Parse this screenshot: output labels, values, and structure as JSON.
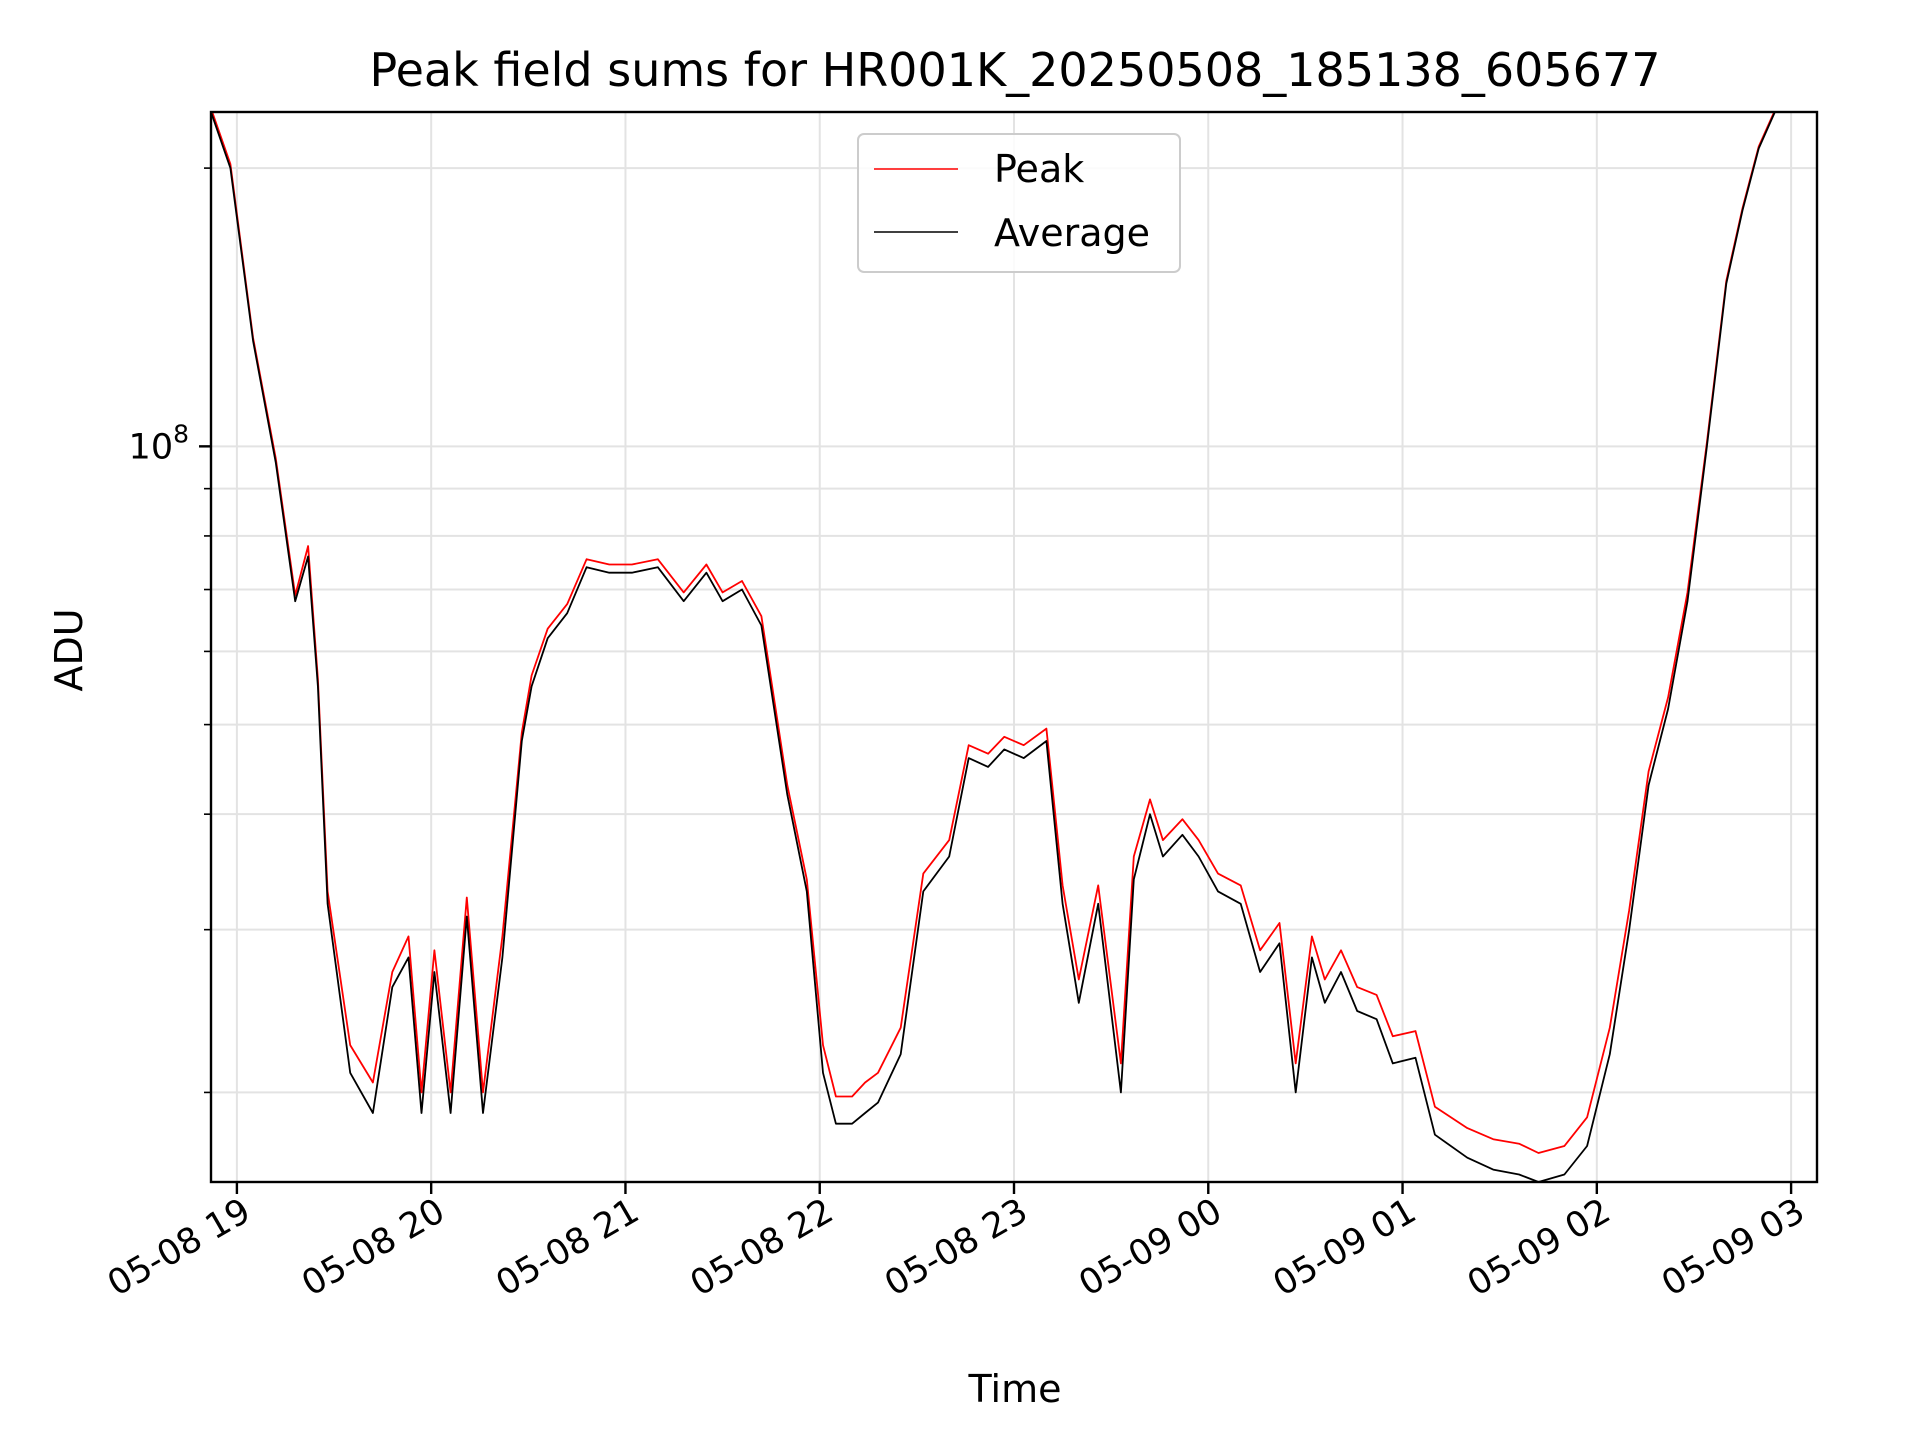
{
  "chart_data": {
    "type": "line",
    "title": "Peak field sums for HR001K_20250508_185138_605677",
    "xlabel": "Time",
    "ylabel": "ADU",
    "y_scale": "log",
    "ylim": [
      16000000,
      230000000
    ],
    "xlim": [
      "05-08 18:52",
      "05-09 03:08"
    ],
    "grid": true,
    "legend_position": "top-center",
    "x_ticks": [
      "05-08 19",
      "05-08 20",
      "05-08 21",
      "05-08 22",
      "05-08 23",
      "05-09 00",
      "05-09 01",
      "05-09 02",
      "05-09 03"
    ],
    "y_major_ticks": [
      {
        "value": 100000000,
        "label_base": "10",
        "label_exp": "8"
      }
    ],
    "series": [
      {
        "name": "Peak",
        "color": "#ff0000"
      },
      {
        "name": "Average",
        "color": "#000000"
      }
    ],
    "x": [
      "05-08 18:52",
      "05-08 18:58",
      "05-08 19:05",
      "05-08 19:12",
      "05-08 19:18",
      "05-08 19:22",
      "05-08 19:25",
      "05-08 19:28",
      "05-08 19:35",
      "05-08 19:42",
      "05-08 19:48",
      "05-08 19:53",
      "05-08 19:57",
      "05-08 20:01",
      "05-08 20:06",
      "05-08 20:11",
      "05-08 20:16",
      "05-08 20:22",
      "05-08 20:28",
      "05-08 20:31",
      "05-08 20:36",
      "05-08 20:42",
      "05-08 20:48",
      "05-08 20:55",
      "05-08 21:02",
      "05-08 21:10",
      "05-08 21:18",
      "05-08 21:25",
      "05-08 21:30",
      "05-08 21:36",
      "05-08 21:42",
      "05-08 21:50",
      "05-08 21:56",
      "05-08 22:01",
      "05-08 22:05",
      "05-08 22:10",
      "05-08 22:14",
      "05-08 22:18",
      "05-08 22:25",
      "05-08 22:32",
      "05-08 22:40",
      "05-08 22:46",
      "05-08 22:52",
      "05-08 22:57",
      "05-08 23:03",
      "05-08 23:10",
      "05-08 23:15",
      "05-08 23:20",
      "05-08 23:26",
      "05-08 23:33",
      "05-08 23:37",
      "05-08 23:42",
      "05-08 23:46",
      "05-08 23:52",
      "05-08 23:57",
      "05-09 00:03",
      "05-09 00:10",
      "05-09 00:16",
      "05-09 00:22",
      "05-09 00:27",
      "05-09 00:32",
      "05-09 00:36",
      "05-09 00:41",
      "05-09 00:46",
      "05-09 00:52",
      "05-09 00:57",
      "05-09 01:04",
      "05-09 01:10",
      "05-09 01:20",
      "05-09 01:28",
      "05-09 01:36",
      "05-09 01:42",
      "05-09 01:50",
      "05-09 01:57",
      "05-09 02:04",
      "05-09 02:10",
      "05-09 02:16",
      "05-09 02:22",
      "05-09 02:28",
      "05-09 02:34",
      "05-09 02:40",
      "05-09 02:45",
      "05-09 02:50",
      "05-09 02:55",
      "05-09 03:00"
    ],
    "average": [
      230000000,
      200000000,
      130000000,
      96000000,
      68000000,
      76000000,
      55000000,
      32000000,
      21000000,
      19000000,
      26000000,
      28000000,
      19000000,
      27000000,
      19000000,
      31000000,
      19000000,
      28000000,
      48000000,
      55000000,
      62000000,
      66000000,
      74000000,
      73000000,
      73000000,
      74000000,
      68000000,
      73000000,
      68000000,
      70000000,
      64000000,
      42000000,
      33000000,
      21000000,
      18500000,
      18500000,
      19000000,
      19500000,
      22000000,
      33000000,
      36000000,
      46000000,
      45000000,
      47000000,
      46000000,
      48000000,
      32000000,
      25000000,
      32000000,
      20000000,
      34000000,
      40000000,
      36000000,
      38000000,
      36000000,
      33000000,
      32000000,
      27000000,
      29000000,
      20000000,
      28000000,
      25000000,
      27000000,
      24500000,
      24000000,
      21500000,
      21800000,
      18000000,
      17000000,
      16500000,
      16300000,
      16000000,
      16300000,
      17500000,
      22000000,
      30000000,
      43000000,
      52000000,
      68000000,
      100000000,
      150000000,
      180000000,
      210000000,
      230000000,
      235000000
    ],
    "peak": [
      232000000,
      202000000,
      131000000,
      97000000,
      69000000,
      78000000,
      56000000,
      33000000,
      22500000,
      20500000,
      27000000,
      29500000,
      20000000,
      28500000,
      20000000,
      32500000,
      20000000,
      29500000,
      49000000,
      56500000,
      63500000,
      67500000,
      75500000,
      74500000,
      74500000,
      75500000,
      69500000,
      74500000,
      69500000,
      71500000,
      65500000,
      43000000,
      34000000,
      22500000,
      19800000,
      19800000,
      20500000,
      21000000,
      23500000,
      34500000,
      37500000,
      47500000,
      46500000,
      48500000,
      47500000,
      49500000,
      33500000,
      26500000,
      33500000,
      21500000,
      36000000,
      41500000,
      37500000,
      39500000,
      37500000,
      34500000,
      33500000,
      28500000,
      30500000,
      21500000,
      29500000,
      26500000,
      28500000,
      26000000,
      25500000,
      23000000,
      23300000,
      19300000,
      18300000,
      17800000,
      17600000,
      17200000,
      17500000,
      18800000,
      23500000,
      31500000,
      44500000,
      53500000,
      69500000,
      101000000,
      151000000,
      181000000,
      211000000,
      231000000,
      236000000
    ]
  }
}
